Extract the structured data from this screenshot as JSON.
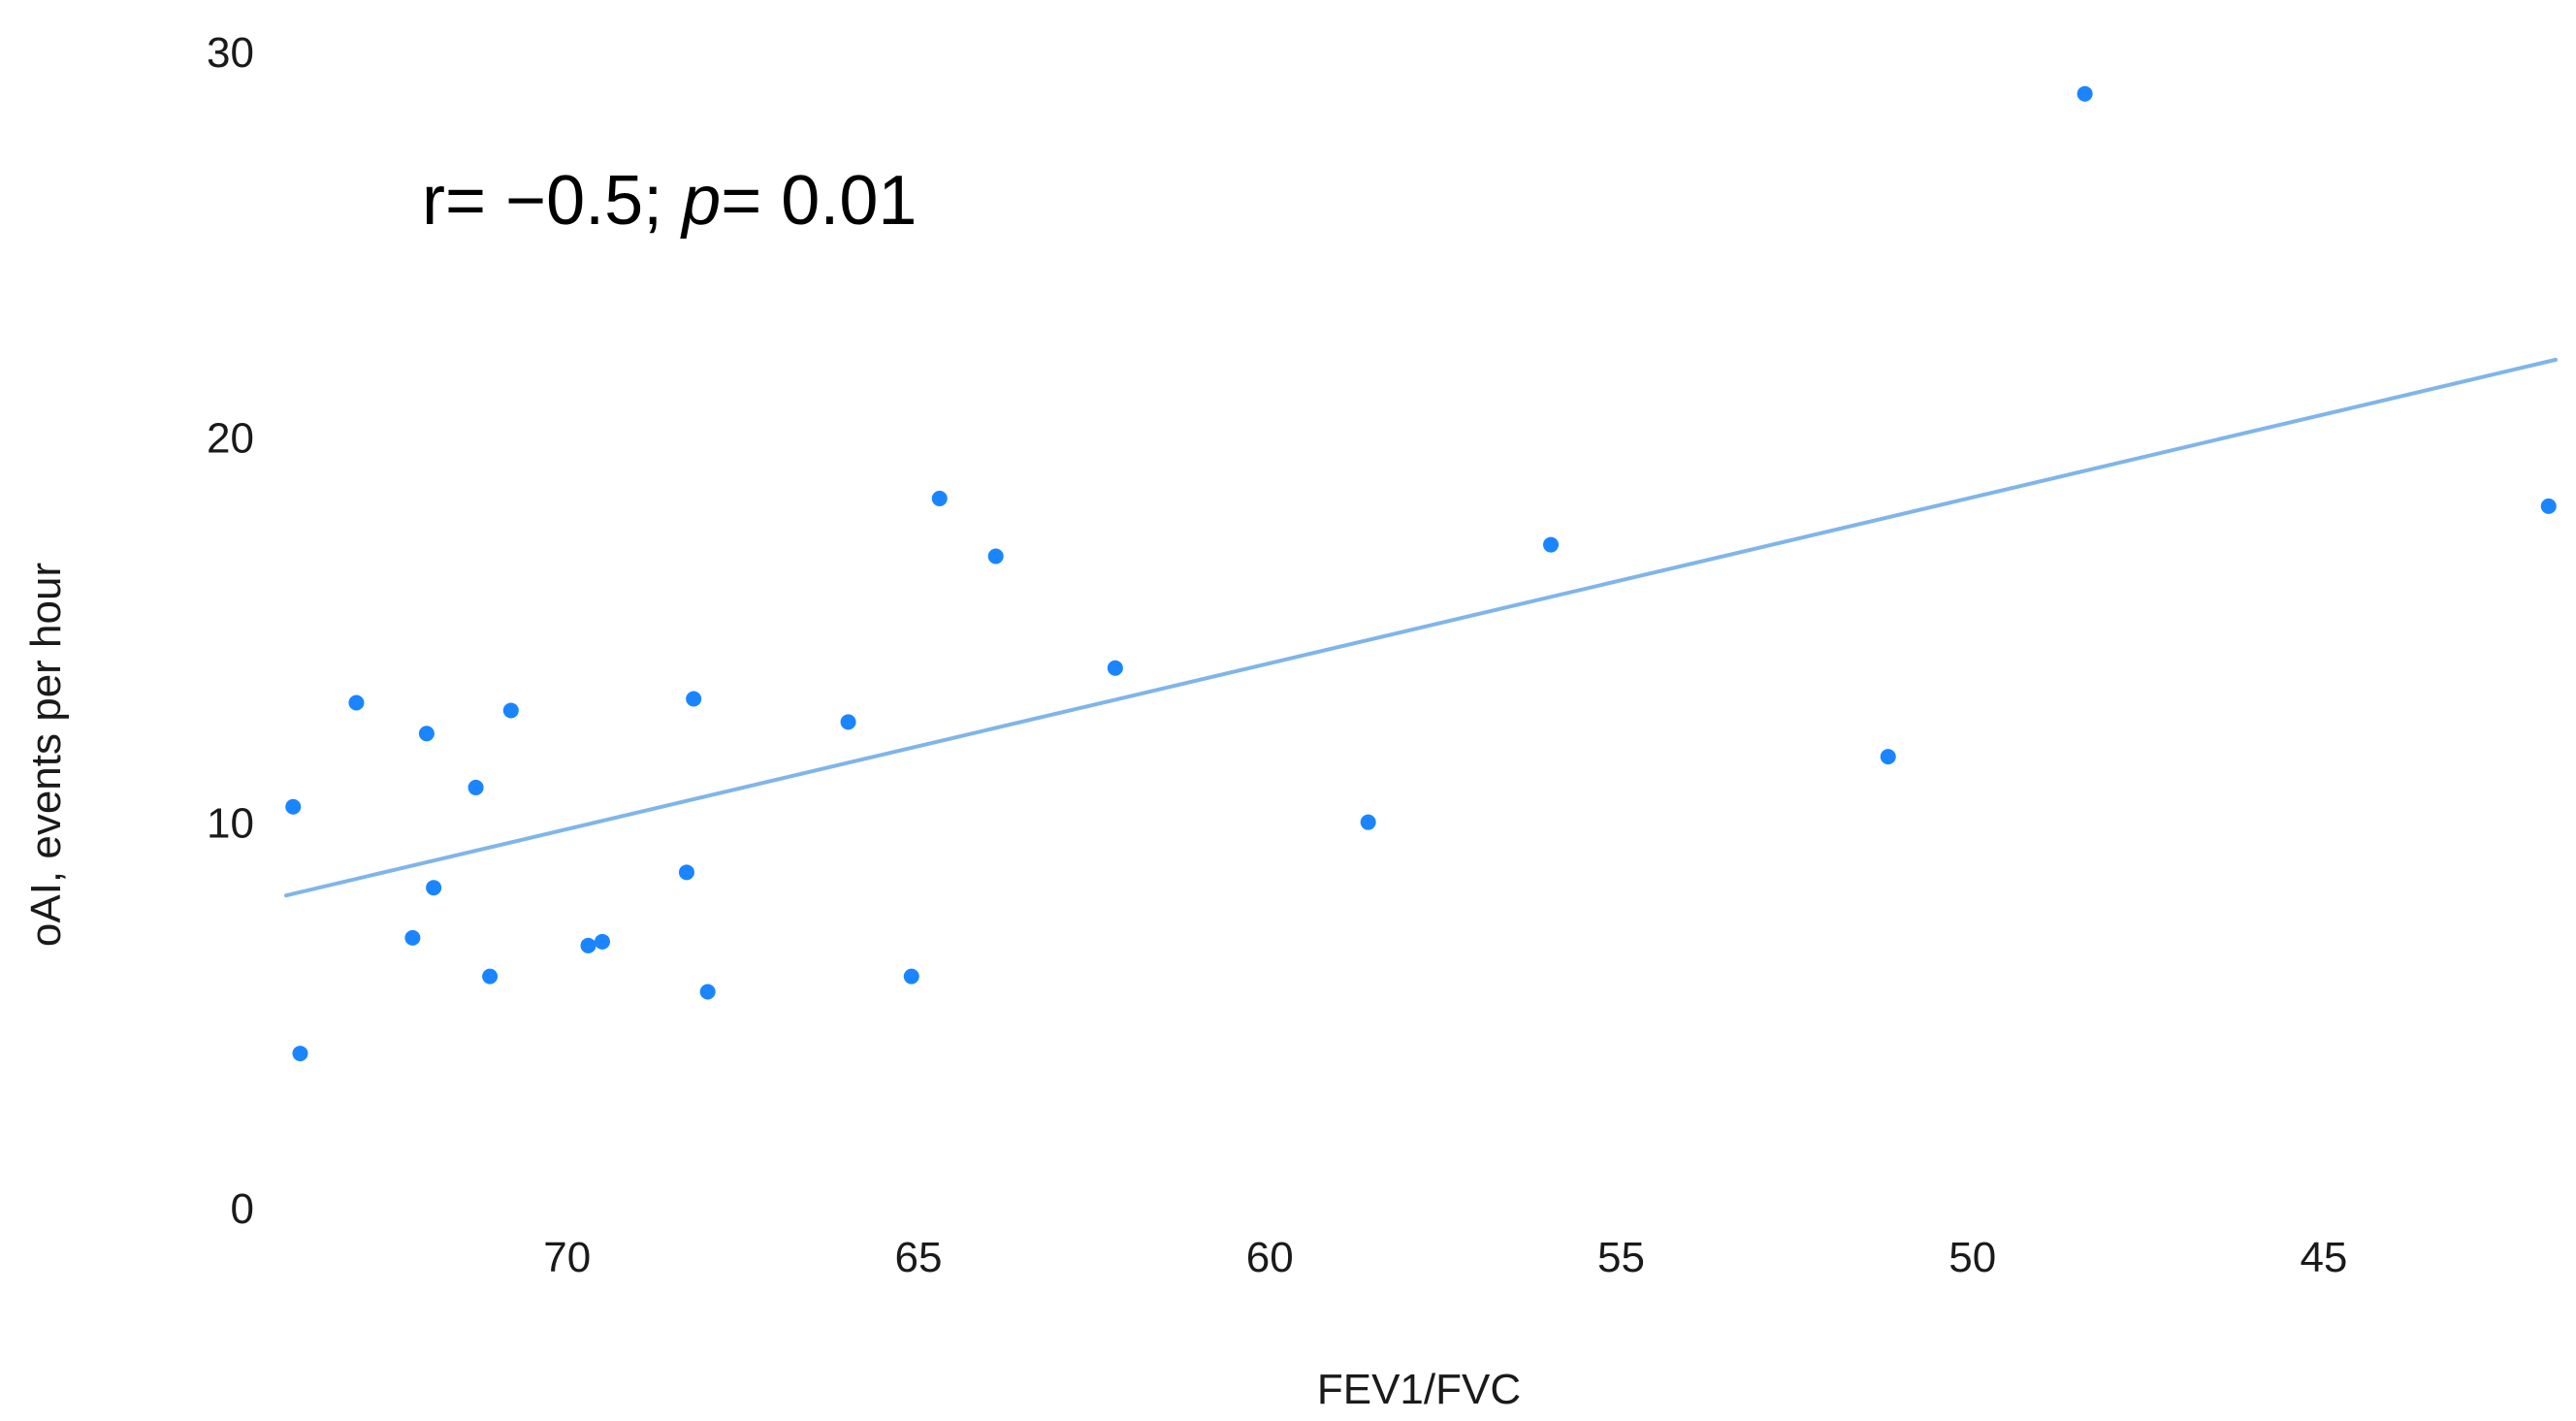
{
  "chart_data": {
    "type": "scatter",
    "xlabel": "FEV1/FVC",
    "ylabel": "oAI, events per hour",
    "xlim": [
      74,
      41.7
    ],
    "ylim": [
      0,
      30
    ],
    "x_reversed": true,
    "x_ticks": [
      70,
      65,
      60,
      55,
      50,
      45
    ],
    "y_ticks": [
      0,
      10,
      20,
      30
    ],
    "grid": false,
    "legend": "none",
    "annotation": {
      "r_part": "r= −0.5; ",
      "p_label": "p",
      "p_part": "= 0.01"
    },
    "points": [
      {
        "x": 73.9,
        "y": 10.4
      },
      {
        "x": 73.8,
        "y": 4.0
      },
      {
        "x": 73.0,
        "y": 13.1
      },
      {
        "x": 72.2,
        "y": 7.0
      },
      {
        "x": 72.0,
        "y": 12.3
      },
      {
        "x": 71.9,
        "y": 8.3
      },
      {
        "x": 71.3,
        "y": 10.9
      },
      {
        "x": 71.1,
        "y": 6.0
      },
      {
        "x": 70.8,
        "y": 12.9
      },
      {
        "x": 69.7,
        "y": 6.8
      },
      {
        "x": 69.5,
        "y": 6.9
      },
      {
        "x": 68.3,
        "y": 8.7
      },
      {
        "x": 68.2,
        "y": 13.2
      },
      {
        "x": 68.0,
        "y": 5.6
      },
      {
        "x": 66.0,
        "y": 12.6
      },
      {
        "x": 65.1,
        "y": 6.0
      },
      {
        "x": 64.7,
        "y": 18.4
      },
      {
        "x": 63.9,
        "y": 16.9
      },
      {
        "x": 62.2,
        "y": 14.0
      },
      {
        "x": 58.6,
        "y": 10.0
      },
      {
        "x": 56.0,
        "y": 17.2
      },
      {
        "x": 51.2,
        "y": 11.7
      },
      {
        "x": 48.4,
        "y": 28.9
      },
      {
        "x": 41.8,
        "y": 18.2
      }
    ],
    "trendline": {
      "x": [
        74,
        41.7
      ],
      "y": [
        8.1,
        22.0
      ]
    },
    "colors": {
      "points": "#1a85ff",
      "trendline": "#7fb5ea",
      "text": "#1a1a1a"
    }
  }
}
